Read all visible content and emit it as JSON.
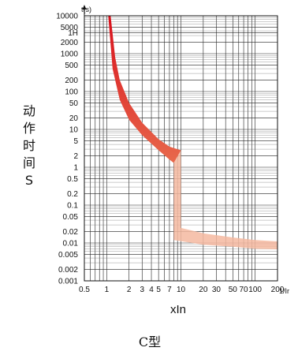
{
  "chart_data": {
    "type": "area",
    "title": "",
    "caption": "C型",
    "xlabel": "xIn",
    "xunit": "1/Ir",
    "ylabel_chars": [
      "动",
      "作",
      "时",
      "间",
      "S"
    ],
    "yunit": "t(s)",
    "xscale": "log",
    "yscale": "log",
    "xlim": [
      0.5,
      200
    ],
    "ylim": [
      0.001,
      10000
    ],
    "grid": true,
    "x_ticks": [
      "0.5",
      "1",
      "2",
      "3",
      "4",
      "5",
      "7",
      "10",
      "20",
      "30",
      "50",
      "70",
      "100",
      "200"
    ],
    "y_ticks": [
      "10000",
      "5000",
      "1H",
      "2000",
      "1000",
      "500",
      "200",
      "100",
      "50",
      "20",
      "10",
      "5",
      "2",
      "1",
      "0.5",
      "0.2",
      "0.1",
      "0.05",
      "0.02",
      "0.01",
      "0.005",
      "0.002",
      "0.001"
    ],
    "thermal_band": {
      "upper": [
        [
          1.13,
          10000
        ],
        [
          1.3,
          800
        ],
        [
          1.5,
          200
        ],
        [
          2,
          50
        ],
        [
          3,
          15
        ],
        [
          5,
          5.5
        ],
        [
          7,
          3.5
        ],
        [
          10,
          2.8
        ]
      ],
      "lower": [
        [
          1.05,
          10000
        ],
        [
          1.2,
          400
        ],
        [
          1.5,
          60
        ],
        [
          2,
          18
        ],
        [
          3,
          7
        ],
        [
          5,
          2.8
        ],
        [
          7,
          1.6
        ],
        [
          8,
          1.3
        ]
      ]
    },
    "instantaneous_band": {
      "upper": [
        [
          10,
          2.8
        ],
        [
          10,
          0.025
        ],
        [
          20,
          0.018
        ],
        [
          50,
          0.014
        ],
        [
          100,
          0.012
        ],
        [
          200,
          0.011
        ]
      ],
      "lower": [
        [
          8,
          1.3
        ],
        [
          8,
          0.012
        ],
        [
          20,
          0.009
        ],
        [
          50,
          0.008
        ],
        [
          100,
          0.007
        ],
        [
          200,
          0.0068
        ]
      ]
    },
    "colors": {
      "thermal_top": "#d8101c",
      "thermal_bottom": "#e8694c",
      "instantaneous": "#f4b8a0"
    }
  }
}
